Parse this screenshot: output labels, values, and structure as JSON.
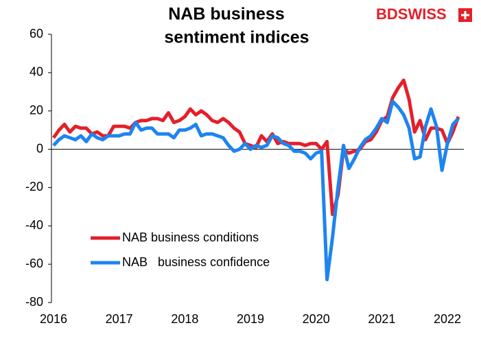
{
  "chart_data": {
    "type": "line",
    "title": [
      "NAB business",
      "sentiment indices"
    ],
    "categories": [
      "2016",
      null,
      null,
      null,
      null,
      null,
      null,
      null,
      null,
      null,
      null,
      null,
      "2017",
      null,
      null,
      null,
      null,
      null,
      null,
      null,
      null,
      null,
      null,
      null,
      "2018",
      null,
      null,
      null,
      null,
      null,
      null,
      null,
      null,
      null,
      null,
      null,
      "2019",
      null,
      null,
      null,
      null,
      null,
      null,
      null,
      null,
      null,
      null,
      null,
      "2020",
      null,
      null,
      null,
      null,
      null,
      null,
      null,
      null,
      null,
      null,
      null,
      "2021",
      null,
      null,
      null,
      null,
      null,
      null,
      null,
      null,
      null,
      null,
      null,
      "2022",
      null,
      null
    ],
    "series": [
      {
        "name": "NAB business conditions",
        "color": "#e3202a",
        "values": [
          6,
          10,
          13,
          9,
          12,
          11,
          11,
          8,
          9,
          7,
          7,
          12,
          12,
          12,
          11,
          14,
          15,
          15,
          16,
          16,
          15,
          19,
          14,
          15,
          17,
          21,
          18,
          20,
          18,
          15,
          14,
          16,
          14,
          11,
          9,
          3,
          2,
          1,
          7,
          4,
          8,
          3,
          4,
          3,
          3,
          3,
          2,
          3,
          3,
          0,
          4,
          -34,
          -24,
          0,
          -2,
          -1,
          0,
          4,
          5,
          9,
          15,
          17,
          27,
          32,
          36,
          26,
          9,
          15,
          5,
          11,
          11,
          10,
          3,
          9,
          17
        ]
      },
      {
        "name": "NAB   business confidence",
        "color": "#1e84f0",
        "values": [
          2,
          5,
          7,
          6,
          5,
          7,
          4,
          8,
          6,
          5,
          7,
          7,
          7,
          8,
          8,
          14,
          10,
          11,
          11,
          8,
          8,
          8,
          6,
          10,
          10,
          11,
          13,
          7,
          8,
          8,
          7,
          6,
          2,
          -1,
          0,
          3,
          0,
          2,
          1,
          2,
          7,
          6,
          3,
          2,
          -1,
          -1,
          -2,
          -5,
          -2,
          -1,
          -68,
          -46,
          -20,
          2,
          -10,
          -5,
          1,
          5,
          7,
          11,
          16,
          14,
          25,
          22,
          18,
          11,
          -5,
          -4,
          12,
          21,
          12,
          -11,
          3,
          13,
          16
        ]
      }
    ],
    "ylim": [
      -80,
      60
    ],
    "yticks": [
      -80,
      -60,
      -40,
      -20,
      0,
      20,
      40,
      60
    ],
    "grid": false,
    "legend": "lower left"
  },
  "logo": "BDSWISS"
}
